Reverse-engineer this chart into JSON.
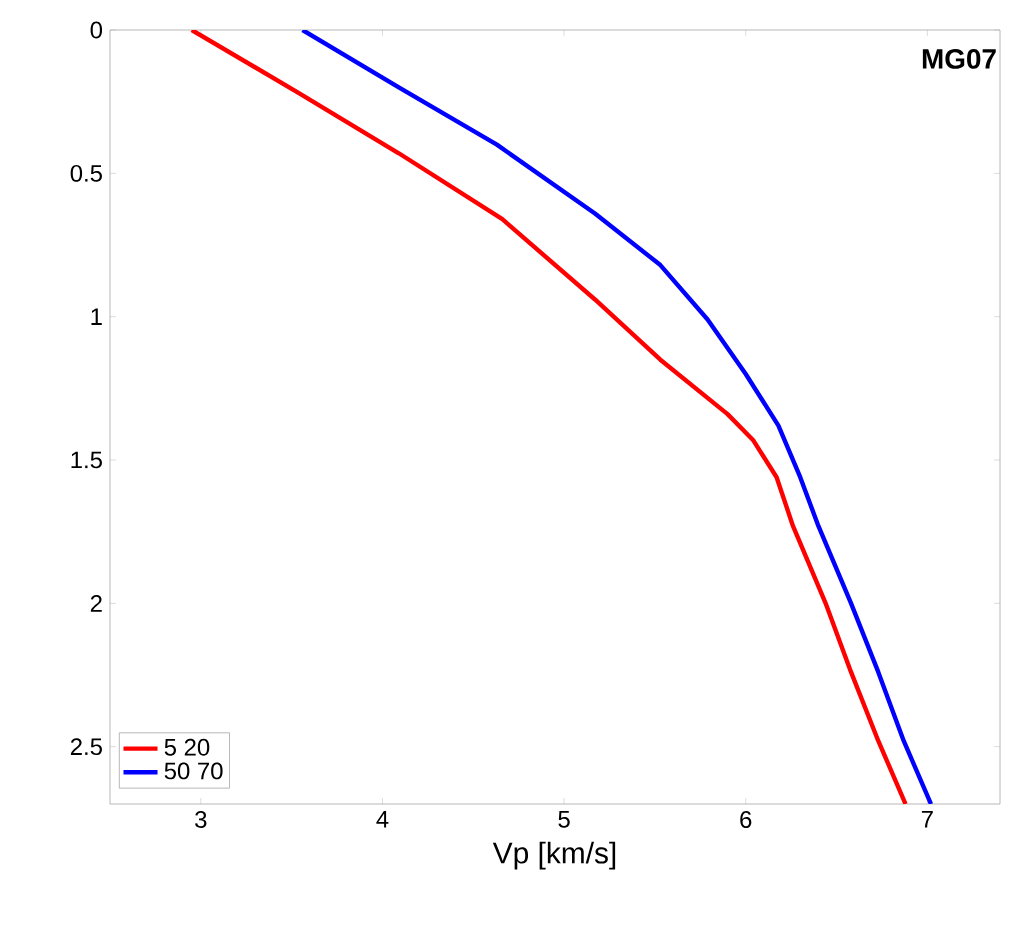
{
  "chart_data": {
    "type": "line",
    "xlabel": "Vp [km/s]",
    "annotations": [
      "MG07"
    ],
    "xlim": [
      2.5,
      7.4
    ],
    "ylim": [
      2.7,
      0
    ],
    "xticks": [
      3,
      4,
      5,
      6,
      7
    ],
    "yticks": [
      0,
      0.5,
      1,
      1.5,
      2,
      2.5
    ],
    "legend": "bottom left",
    "grid": false,
    "marker": "none",
    "line_style": "solid",
    "series": [
      {
        "name": "5 20",
        "color": "#ff0000",
        "x": [
          2.95,
          3.54,
          4.09,
          4.66,
          5.17,
          5.53,
          5.9,
          6.04,
          6.17,
          6.26,
          6.44,
          6.58,
          6.73,
          6.88
        ],
        "values": [
          0,
          0.22,
          0.43,
          0.66,
          0.94,
          1.15,
          1.34,
          1.43,
          1.56,
          1.73,
          2.0,
          2.24,
          2.48,
          2.7
        ]
      },
      {
        "name": "50 70",
        "color": "#0000ff",
        "x": [
          3.56,
          4.09,
          4.63,
          5.17,
          5.53,
          5.79,
          6.0,
          6.18,
          6.3,
          6.4,
          6.58,
          6.73,
          6.87,
          7.02
        ],
        "values": [
          0,
          0.2,
          0.4,
          0.64,
          0.82,
          1.01,
          1.2,
          1.38,
          1.56,
          1.73,
          2.0,
          2.24,
          2.48,
          2.7
        ]
      }
    ]
  }
}
